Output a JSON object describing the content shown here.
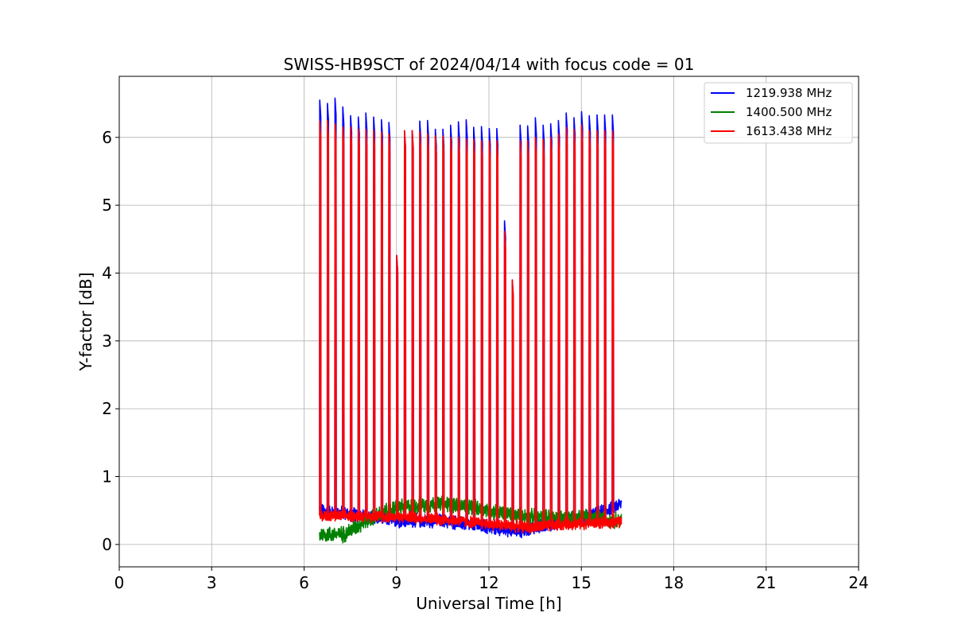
{
  "chart_data": {
    "type": "line",
    "title": "SWISS-HB9SCT of 2024/04/14 with focus code = 01",
    "xlabel": "Universal Time [h]",
    "ylabel": "Y-factor [dB]",
    "xlim": [
      0,
      24
    ],
    "ylim": [
      -0.33,
      6.9
    ],
    "xticks": [
      0,
      3,
      6,
      9,
      12,
      15,
      18,
      21,
      24
    ],
    "yticks": [
      0,
      1,
      2,
      3,
      4,
      5,
      6
    ],
    "grid": true,
    "legend_position": "top-right",
    "time_range": [
      6.5,
      16.3
    ],
    "spike_times": [
      6.5,
      6.75,
      7.0,
      7.25,
      7.5,
      7.75,
      8.0,
      8.25,
      8.5,
      8.75,
      9.0,
      9.25,
      9.5,
      9.75,
      10.0,
      10.25,
      10.5,
      10.75,
      11.0,
      11.25,
      11.5,
      11.75,
      12.0,
      12.25,
      12.5,
      12.75,
      13.0,
      13.25,
      13.5,
      13.75,
      14.0,
      14.25,
      14.5,
      14.75,
      15.0,
      15.25,
      15.5,
      15.75,
      16.0
    ],
    "series": [
      {
        "name": "1219.938 MHz",
        "color": "#0000ff",
        "baseline": [
          [
            6.5,
            0.5
          ],
          [
            7.5,
            0.45
          ],
          [
            9.0,
            0.35
          ],
          [
            10.5,
            0.35
          ],
          [
            12.0,
            0.25
          ],
          [
            13.0,
            0.2
          ],
          [
            14.5,
            0.35
          ],
          [
            15.5,
            0.45
          ],
          [
            16.3,
            0.6
          ]
        ],
        "noise": 0.12,
        "spike_peaks": [
          6.55,
          6.5,
          6.58,
          6.45,
          6.32,
          6.3,
          6.36,
          6.3,
          6.26,
          6.22,
          4.26,
          6.1,
          6.1,
          6.24,
          6.25,
          6.12,
          6.12,
          6.18,
          6.23,
          6.26,
          6.15,
          6.16,
          6.13,
          6.13,
          4.77,
          3.9,
          6.18,
          6.17,
          6.29,
          6.18,
          6.2,
          6.25,
          6.36,
          6.29,
          6.38,
          6.32,
          6.33,
          6.33,
          6.33
        ]
      },
      {
        "name": "1400.500 MHz",
        "color": "#008000",
        "baseline": [
          [
            6.5,
            0.15
          ],
          [
            7.3,
            0.15
          ],
          [
            8.0,
            0.35
          ],
          [
            9.0,
            0.55
          ],
          [
            10.5,
            0.6
          ],
          [
            11.5,
            0.55
          ],
          [
            12.5,
            0.45
          ],
          [
            13.5,
            0.4
          ],
          [
            14.5,
            0.4
          ],
          [
            15.5,
            0.4
          ],
          [
            16.3,
            0.35
          ]
        ],
        "noise": 0.14,
        "spike_peaks": []
      },
      {
        "name": "1613.438 MHz",
        "color": "#ff0000",
        "baseline": [
          [
            6.5,
            0.42
          ],
          [
            8.0,
            0.42
          ],
          [
            9.5,
            0.4
          ],
          [
            11.0,
            0.35
          ],
          [
            12.5,
            0.28
          ],
          [
            13.5,
            0.25
          ],
          [
            14.5,
            0.3
          ],
          [
            16.3,
            0.33
          ]
        ],
        "noise": 0.1,
        "spike_peaks": [
          6.24,
          6.25,
          6.2,
          6.15,
          6.15,
          6.12,
          6.12,
          6.1,
          6.08,
          6.05,
          4.26,
          6.1,
          6.1,
          6.08,
          6.05,
          6.02,
          6.02,
          6.0,
          6.0,
          5.98,
          5.97,
          5.95,
          5.95,
          5.95,
          4.62,
          3.9,
          5.95,
          5.95,
          6.0,
          5.97,
          6.0,
          6.05,
          6.15,
          6.12,
          6.18,
          6.1,
          6.1,
          6.1,
          6.1
        ]
      }
    ]
  }
}
